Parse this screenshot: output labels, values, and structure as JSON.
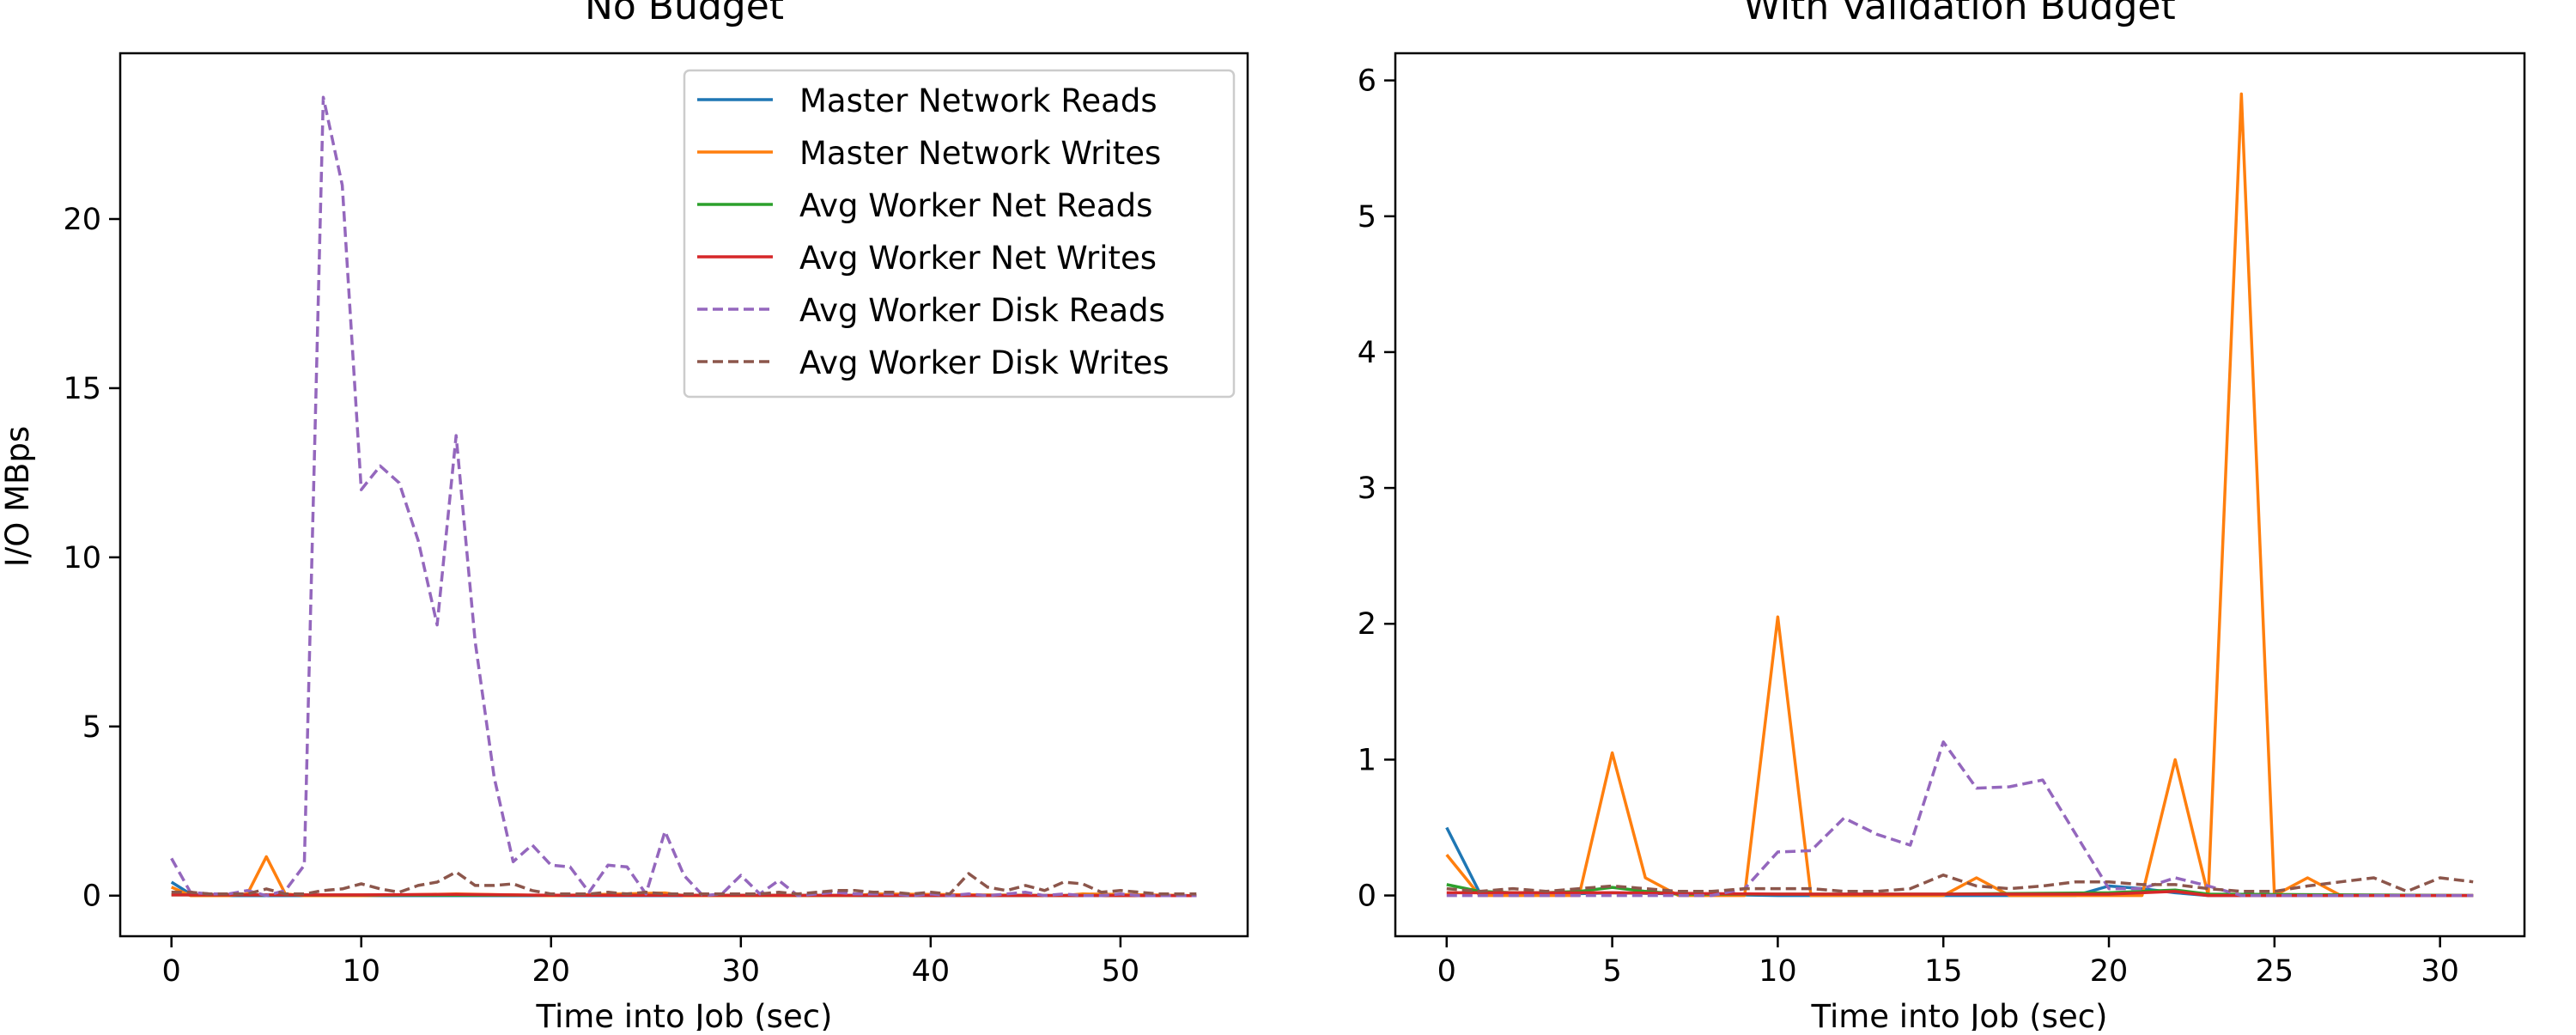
{
  "chart_data": [
    {
      "type": "line",
      "title": "No Budget",
      "xlabel": "Time into Job (sec)",
      "ylabel": "I/O MBps",
      "xlim": [
        -2.7,
        56.7
      ],
      "ylim": [
        -1.2,
        24.9
      ],
      "xticks": [
        0,
        10,
        20,
        30,
        40,
        50
      ],
      "yticks": [
        0,
        5,
        10,
        15,
        20
      ],
      "grid": false,
      "legend_position": "top-right",
      "series": [
        {
          "name": "Master Network Reads",
          "color": "#1f77b4",
          "dash": "solid",
          "x": [
            0,
            1,
            2,
            54
          ],
          "y": [
            0.4,
            0.05,
            0.0,
            0.0
          ]
        },
        {
          "name": "Master Network Writes",
          "color": "#ff7f0e",
          "dash": "solid",
          "x": [
            0,
            1,
            2,
            3,
            4,
            5,
            6,
            7,
            8,
            10,
            15,
            20,
            26,
            27,
            36,
            37,
            47,
            48,
            54
          ],
          "y": [
            0.25,
            0.0,
            0.0,
            0.0,
            0.05,
            1.15,
            0.05,
            0.0,
            0.0,
            0.0,
            0.05,
            0.0,
            0.08,
            0.0,
            0.0,
            0.05,
            0.0,
            0.05,
            0.0
          ]
        },
        {
          "name": "Avg Worker Net Reads",
          "color": "#2ca02c",
          "dash": "solid",
          "x": [
            0,
            54
          ],
          "y": [
            0.02,
            0.0
          ]
        },
        {
          "name": "Avg Worker Net Writes",
          "color": "#d62728",
          "dash": "solid",
          "x": [
            0,
            10,
            15,
            20,
            54
          ],
          "y": [
            0.02,
            0.02,
            0.04,
            0.01,
            0.0
          ]
        },
        {
          "name": "Avg Worker Disk Reads",
          "color": "#9467bd",
          "dash": "dashed",
          "x": [
            0,
            1,
            2,
            3,
            4,
            5,
            6,
            7,
            8,
            9,
            10,
            11,
            12,
            13,
            14,
            15,
            16,
            17,
            18,
            19,
            20,
            21,
            22,
            23,
            24,
            25,
            26,
            27,
            28,
            29,
            30,
            31,
            32,
            33,
            34,
            35,
            36,
            37,
            38,
            39,
            40,
            41,
            42,
            43,
            44,
            45,
            46,
            47,
            48,
            49,
            50,
            51,
            52,
            53,
            54
          ],
          "y": [
            1.1,
            0.1,
            0.05,
            0.05,
            0.15,
            0.0,
            0.15,
            0.9,
            23.6,
            21.0,
            12.0,
            12.7,
            12.2,
            10.5,
            8.0,
            13.6,
            7.5,
            3.5,
            1.0,
            1.5,
            0.9,
            0.85,
            0.1,
            0.9,
            0.85,
            0.05,
            1.9,
            0.6,
            0.0,
            0.05,
            0.6,
            0.05,
            0.45,
            0.0,
            0.05,
            0.1,
            0.05,
            0.05,
            0.05,
            0.0,
            0.05,
            0.0,
            0.05,
            0.0,
            0.05,
            0.1,
            0.0,
            0.05,
            0.0,
            0.0,
            0.05,
            0.0,
            0.0,
            0.0,
            0.0
          ]
        },
        {
          "name": "Avg Worker Disk Writes",
          "color": "#8c564b",
          "dash": "dashed",
          "x": [
            0,
            1,
            2,
            3,
            4,
            5,
            6,
            7,
            8,
            9,
            10,
            11,
            12,
            13,
            14,
            15,
            16,
            17,
            18,
            19,
            20,
            21,
            22,
            23,
            24,
            25,
            26,
            27,
            28,
            29,
            30,
            31,
            32,
            33,
            34,
            35,
            36,
            37,
            38,
            39,
            40,
            41,
            42,
            43,
            44,
            45,
            46,
            47,
            48,
            49,
            50,
            51,
            52,
            53,
            54
          ],
          "y": [
            0.1,
            0.1,
            0.05,
            0.05,
            0.05,
            0.2,
            0.05,
            0.05,
            0.15,
            0.2,
            0.35,
            0.2,
            0.1,
            0.3,
            0.4,
            0.7,
            0.3,
            0.3,
            0.35,
            0.15,
            0.05,
            0.05,
            0.05,
            0.1,
            0.05,
            0.1,
            0.05,
            0.05,
            0.05,
            0.05,
            0.05,
            0.05,
            0.1,
            0.05,
            0.1,
            0.15,
            0.15,
            0.1,
            0.1,
            0.05,
            0.1,
            0.05,
            0.65,
            0.25,
            0.15,
            0.3,
            0.15,
            0.4,
            0.35,
            0.1,
            0.15,
            0.1,
            0.05,
            0.05,
            0.05
          ]
        }
      ]
    },
    {
      "type": "line",
      "title": "With Validation Budget",
      "xlabel": "Time into Job (sec)",
      "ylabel": "",
      "xlim": [
        -1.55,
        32.55
      ],
      "ylim": [
        -0.3,
        6.2
      ],
      "xticks": [
        0,
        5,
        10,
        15,
        20,
        25,
        30
      ],
      "yticks": [
        0,
        1,
        2,
        3,
        4,
        5,
        6
      ],
      "grid": false,
      "series": [
        {
          "name": "Master Network Reads",
          "color": "#1f77b4",
          "dash": "solid",
          "x": [
            0,
            1,
            2,
            5,
            10,
            15,
            19,
            20,
            21,
            22,
            23,
            31
          ],
          "y": [
            0.5,
            0.02,
            0.0,
            0.02,
            0.0,
            0.0,
            0.0,
            0.07,
            0.05,
            0.02,
            0.0,
            0.0
          ]
        },
        {
          "name": "Master Network Writes",
          "color": "#ff7f0e",
          "dash": "solid",
          "x": [
            0,
            1,
            2,
            3,
            4,
            5,
            6,
            7,
            8,
            9,
            10,
            11,
            12,
            13,
            14,
            15,
            16,
            17,
            18,
            19,
            20,
            21,
            22,
            23,
            24,
            25,
            26,
            27,
            28,
            29,
            30,
            31
          ],
          "y": [
            0.3,
            0.0,
            0.0,
            0.0,
            0.0,
            1.05,
            0.13,
            0.0,
            0.0,
            0.0,
            2.05,
            0.0,
            0.0,
            0.0,
            0.0,
            0.0,
            0.13,
            0.0,
            0.0,
            0.0,
            0.0,
            0.0,
            1.0,
            0.0,
            5.9,
            0.0,
            0.13,
            0.0,
            0.0,
            0.0,
            0.0,
            0.0
          ]
        },
        {
          "name": "Avg Worker Net Reads",
          "color": "#2ca02c",
          "dash": "solid",
          "x": [
            0,
            1,
            2,
            3,
            4,
            5,
            6,
            7,
            10,
            15,
            20,
            22,
            23,
            31
          ],
          "y": [
            0.08,
            0.03,
            0.02,
            0.02,
            0.03,
            0.06,
            0.03,
            0.01,
            0.01,
            0.01,
            0.02,
            0.04,
            0.01,
            0.0
          ]
        },
        {
          "name": "Avg Worker Net Writes",
          "color": "#d62728",
          "dash": "solid",
          "x": [
            0,
            5,
            10,
            15,
            20,
            22,
            23,
            31
          ],
          "y": [
            0.02,
            0.02,
            0.01,
            0.01,
            0.01,
            0.03,
            0.0,
            0.0
          ]
        },
        {
          "name": "Avg Worker Disk Reads",
          "color": "#9467bd",
          "dash": "dashed",
          "x": [
            0,
            1,
            2,
            3,
            4,
            5,
            6,
            7,
            8,
            9,
            10,
            11,
            12,
            13,
            14,
            15,
            16,
            17,
            18,
            19,
            20,
            21,
            22,
            23,
            24,
            25,
            26,
            27,
            28,
            29,
            30,
            31
          ],
          "y": [
            0.0,
            0.0,
            0.0,
            0.0,
            0.0,
            0.0,
            0.0,
            0.0,
            0.0,
            0.05,
            0.32,
            0.33,
            0.57,
            0.45,
            0.37,
            1.13,
            0.79,
            0.8,
            0.85,
            0.45,
            0.05,
            0.05,
            0.13,
            0.07,
            0.0,
            0.0,
            0.0,
            0.0,
            0.0,
            0.0,
            0.0,
            0.0
          ]
        },
        {
          "name": "Avg Worker Disk Writes",
          "color": "#8c564b",
          "dash": "dashed",
          "x": [
            0,
            1,
            2,
            3,
            4,
            5,
            6,
            7,
            8,
            9,
            10,
            11,
            12,
            13,
            14,
            15,
            16,
            17,
            18,
            19,
            20,
            21,
            22,
            23,
            24,
            25,
            26,
            27,
            28,
            29,
            30,
            31
          ],
          "y": [
            0.05,
            0.03,
            0.05,
            0.03,
            0.05,
            0.07,
            0.05,
            0.03,
            0.03,
            0.05,
            0.05,
            0.05,
            0.03,
            0.03,
            0.05,
            0.15,
            0.07,
            0.05,
            0.07,
            0.1,
            0.1,
            0.08,
            0.08,
            0.05,
            0.03,
            0.03,
            0.07,
            0.1,
            0.13,
            0.03,
            0.13,
            0.1
          ]
        }
      ]
    }
  ]
}
